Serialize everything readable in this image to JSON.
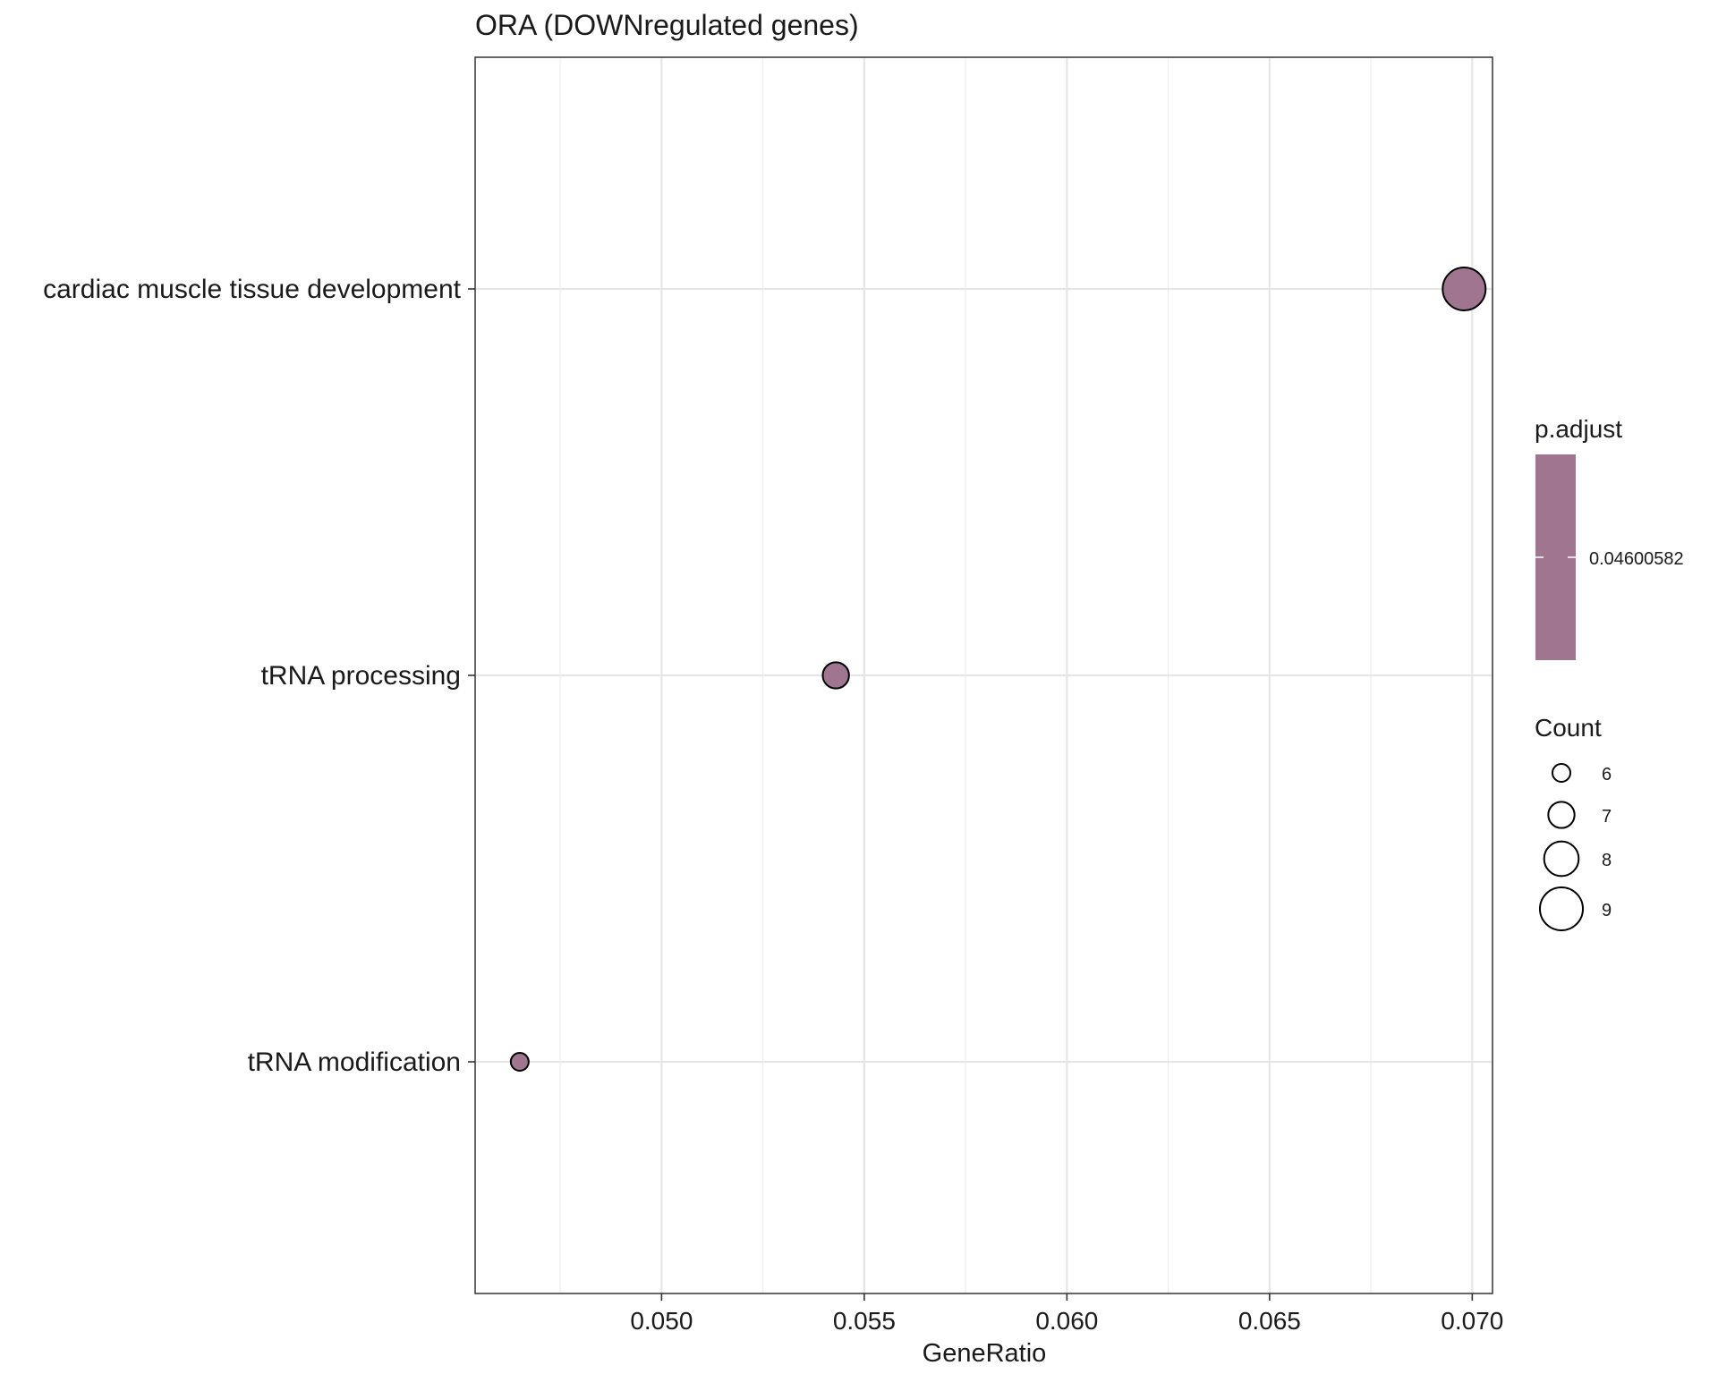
{
  "chart_data": {
    "type": "scatter",
    "title": "ORA (DOWNregulated genes)",
    "xlabel": "GeneRatio",
    "ylabel": "",
    "xlim": [
      0.0454,
      0.0705
    ],
    "x_ticks": [
      "0.050",
      "0.055",
      "0.060",
      "0.065",
      "0.070"
    ],
    "x_tick_values": [
      0.05,
      0.055,
      0.06,
      0.065,
      0.07
    ],
    "categories": [
      "cardiac muscle tissue development",
      "tRNA processing",
      "tRNA modification"
    ],
    "points": [
      {
        "term": "cardiac muscle tissue development",
        "gene_ratio": 0.0698,
        "count": 9,
        "p_adjust": 0.04600582
      },
      {
        "term": "tRNA processing",
        "gene_ratio": 0.0543,
        "count": 7,
        "p_adjust": 0.04600582
      },
      {
        "term": "tRNA modification",
        "gene_ratio": 0.0465,
        "count": 6,
        "p_adjust": 0.04600582
      }
    ],
    "grid": true,
    "color_legend": {
      "title": "p.adjust",
      "labels": [
        "0.04600582"
      ],
      "color": "#a0758f"
    },
    "size_legend": {
      "title": "Count",
      "values": [
        6,
        7,
        8,
        9
      ],
      "labels": [
        "6",
        "7",
        "8",
        "9"
      ]
    },
    "legend_position": "right"
  }
}
